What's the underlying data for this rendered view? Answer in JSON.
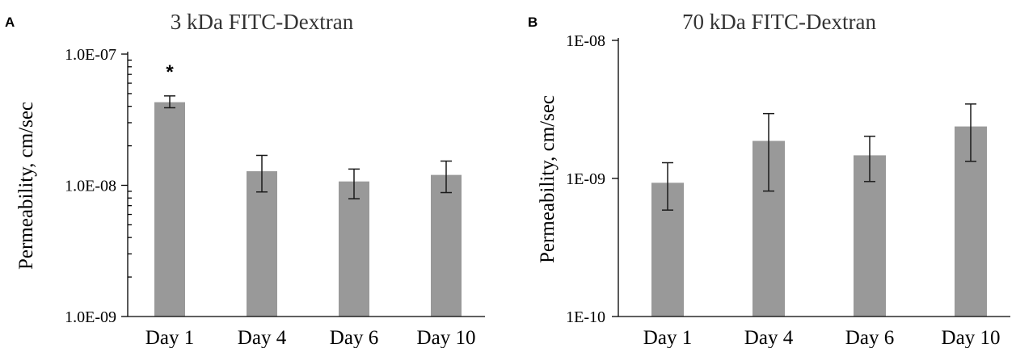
{
  "chart_data": [
    {
      "type": "bar",
      "panel": "A",
      "title": "3 kDa FITC-Dextran",
      "ylabel": "Permeability, cm/sec",
      "xlabel": "",
      "yscale": "log",
      "ylim": [
        1e-09,
        1e-07
      ],
      "yticks": [
        {
          "value": 1e-07,
          "label": "1.0E-07"
        },
        {
          "value": 1e-08,
          "label": "1.0E-08"
        },
        {
          "value": 1e-09,
          "label": "1.0E-09"
        }
      ],
      "minor_ticks": true,
      "grid": false,
      "bar_color": "#999999",
      "categories": [
        "Day 1",
        "Day 4",
        "Day 6",
        "Day 10"
      ],
      "values": [
        4.3e-08,
        1.28e-08,
        1.07e-08,
        1.2e-08
      ],
      "error_low": [
        3.9e-08,
        8.9e-09,
        7.9e-09,
        8.8e-09
      ],
      "error_high": [
        4.8e-08,
        1.69e-08,
        1.33e-08,
        1.53e-08
      ],
      "annotations": [
        {
          "category": "Day 1",
          "text": "*"
        }
      ]
    },
    {
      "type": "bar",
      "panel": "B",
      "title": "70 kDa FITC-Dextran",
      "ylabel": "Permeability, cm/sec",
      "xlabel": "",
      "yscale": "log",
      "ylim": [
        1e-10,
        1e-08
      ],
      "yticks": [
        {
          "value": 1e-08,
          "label": "1E-08"
        },
        {
          "value": 1e-09,
          "label": "1E-09"
        },
        {
          "value": 1e-10,
          "label": "1E-10"
        }
      ],
      "minor_ticks": false,
      "grid": false,
      "bar_color": "#999999",
      "categories": [
        "Day 1",
        "Day 4",
        "Day 6",
        "Day 10"
      ],
      "values": [
        9.3e-10,
        1.87e-09,
        1.47e-09,
        2.38e-09
      ],
      "error_low": [
        5.9e-10,
        8.1e-10,
        9.5e-10,
        1.33e-09
      ],
      "error_high": [
        1.3e-09,
        2.95e-09,
        2.02e-09,
        3.46e-09
      ],
      "annotations": []
    }
  ]
}
